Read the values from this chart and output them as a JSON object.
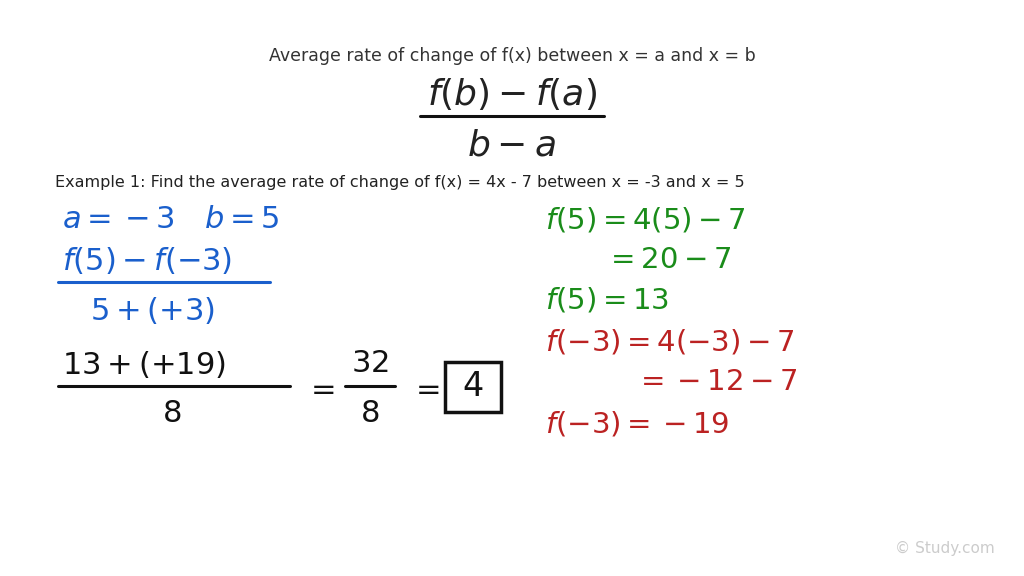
{
  "bg_color": "#ffffff",
  "title_text": "Average rate of change of f(x) between x = a and x = b",
  "title_color": "#333333",
  "title_fontsize": 12.5,
  "formula_color": "#222222",
  "example_text": "Example 1: Find the average rate of change of f(x) = 4x - 7 between x = -3 and x = 5",
  "example_color": "#222222",
  "example_fontsize": 11.5,
  "blue_color": "#1a5fcc",
  "green_color": "#1a8c1a",
  "red_color": "#bb2222",
  "black_color": "#111111",
  "watermark": "© Study.com",
  "watermark_color": "#cccccc",
  "fig_width": 10.24,
  "fig_height": 5.76,
  "dpi": 100
}
